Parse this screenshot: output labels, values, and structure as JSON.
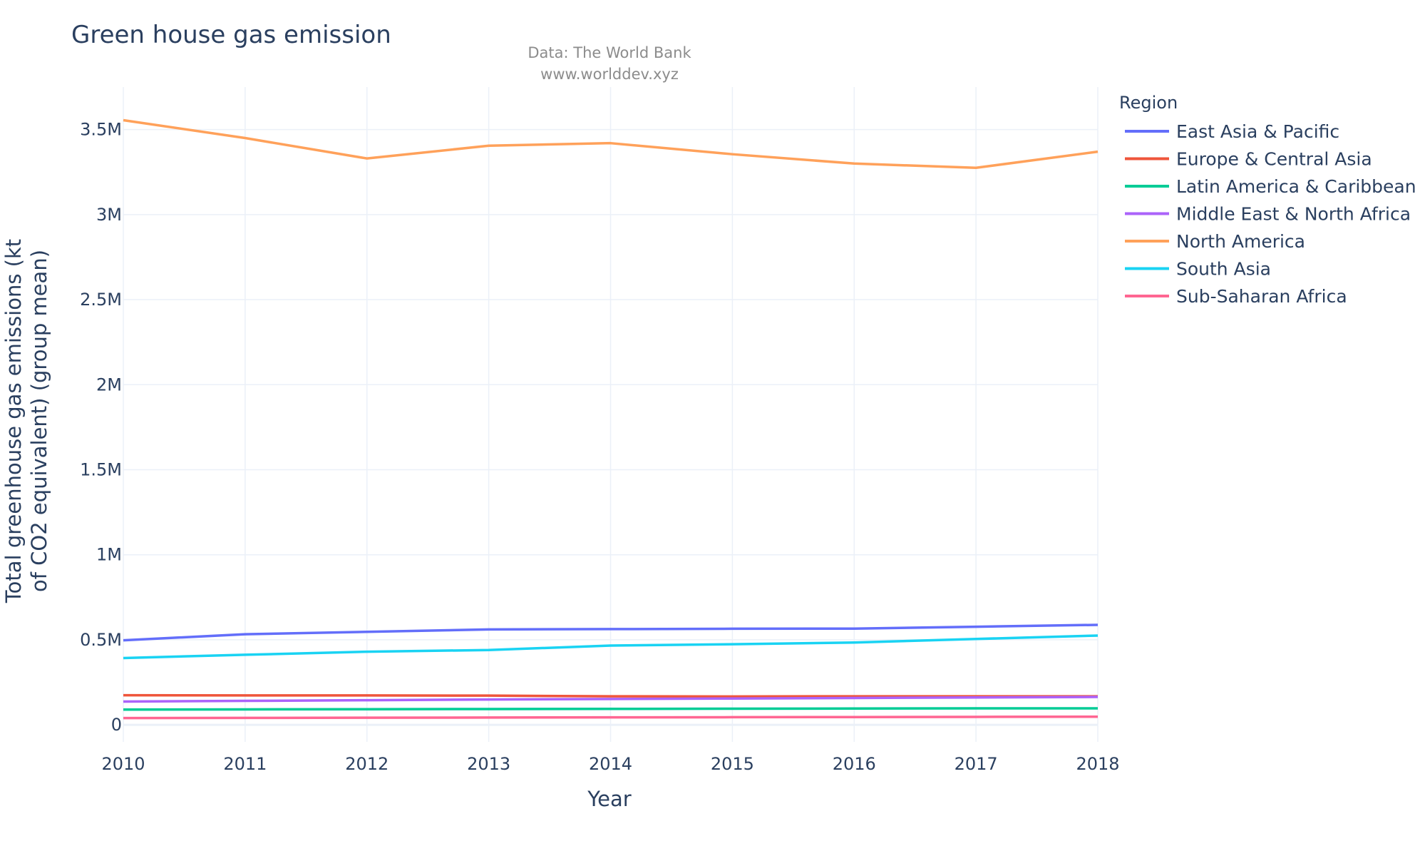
{
  "chart_data": {
    "type": "line",
    "title": "Green house gas emission",
    "subtitle": [
      "Data: The World Bank",
      "www.worlddev.xyz"
    ],
    "xlabel": "Year",
    "ylabel": [
      "Total greenhouse gas emissions (kt",
      "of CO2 equivalent) (group mean)"
    ],
    "x": [
      2010,
      2011,
      2012,
      2013,
      2014,
      2015,
      2016,
      2017,
      2018
    ],
    "x_tick_labels": [
      "2010",
      "2011",
      "2012",
      "2013",
      "2014",
      "2015",
      "2016",
      "2017",
      "2018"
    ],
    "xlim": [
      2010,
      2018
    ],
    "ylim": [
      -100000,
      3750000
    ],
    "y_ticks": [
      0,
      500000,
      1000000,
      1500000,
      2000000,
      2500000,
      3000000,
      3500000
    ],
    "y_tick_labels": [
      "0",
      "0.5M",
      "1M",
      "1.5M",
      "2M",
      "2.5M",
      "3M",
      "3.5M"
    ],
    "grid": true,
    "legend_title": "Region",
    "legend_position": "right",
    "series": [
      {
        "name": "East Asia & Pacific",
        "color": "#636efa",
        "values": [
          497000,
          533000,
          547000,
          561000,
          563000,
          565000,
          566000,
          577000,
          588000
        ]
      },
      {
        "name": "Europe & Central Asia",
        "color": "#ef553b",
        "values": [
          174000,
          173000,
          173000,
          172000,
          168000,
          167000,
          168000,
          168000,
          168000
        ]
      },
      {
        "name": "Latin America & Caribbean",
        "color": "#00cc96",
        "values": [
          90000,
          91000,
          92000,
          93000,
          94000,
          95000,
          96000,
          97000,
          97000
        ]
      },
      {
        "name": "Middle East & North Africa",
        "color": "#ab63fa",
        "values": [
          137000,
          141000,
          145000,
          149000,
          152000,
          155000,
          158000,
          161000,
          164000
        ]
      },
      {
        "name": "North America",
        "color": "#ffa15a",
        "values": [
          3555000,
          3450000,
          3330000,
          3405000,
          3420000,
          3355000,
          3300000,
          3275000,
          3370000
        ]
      },
      {
        "name": "South Asia",
        "color": "#19d3f3",
        "values": [
          393000,
          412000,
          430000,
          440000,
          466000,
          474000,
          484000,
          505000,
          525000
        ]
      },
      {
        "name": "Sub-Saharan Africa",
        "color": "#ff6692",
        "values": [
          40000,
          41000,
          42000,
          43000,
          44000,
          45000,
          46000,
          47000,
          48000
        ]
      }
    ]
  }
}
